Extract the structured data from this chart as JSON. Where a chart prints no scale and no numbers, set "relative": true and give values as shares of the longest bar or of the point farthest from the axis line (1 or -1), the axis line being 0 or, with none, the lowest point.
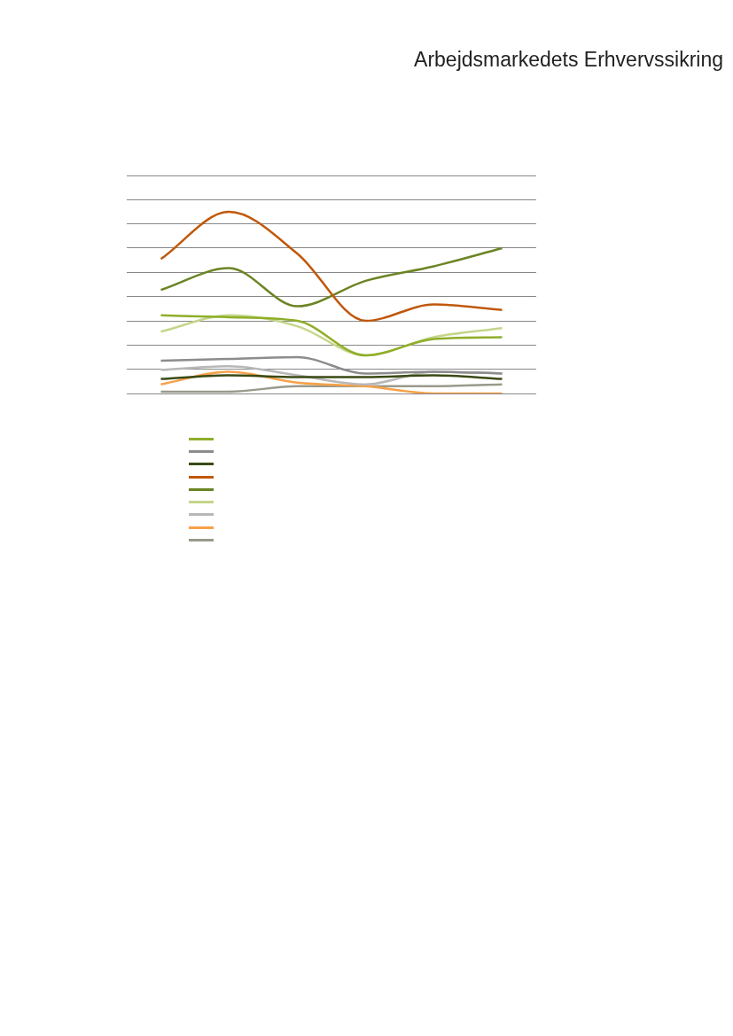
{
  "chart_data": {
    "type": "line",
    "title": "Arbejdsmarkedets Erhvervssikring",
    "relative": true,
    "grid": "y",
    "categories": [
      null,
      null,
      null,
      null,
      null,
      null
    ],
    "series": [
      {
        "color": "#8fae2a",
        "values": [
          0.43,
          0.42,
          0.4,
          0.21,
          0.3,
          0.31
        ]
      },
      {
        "color": "#8c8c8c",
        "values": [
          0.18,
          0.19,
          0.2,
          0.11,
          0.12,
          0.11
        ]
      },
      {
        "color": "#3a4a14",
        "values": [
          0.08,
          0.1,
          0.09,
          0.09,
          0.1,
          0.08
        ]
      },
      {
        "color": "#c0580b",
        "values": [
          0.74,
          1.0,
          0.77,
          0.4,
          0.49,
          0.46
        ]
      },
      {
        "color": "#6b8423",
        "values": [
          0.57,
          0.69,
          0.48,
          0.62,
          0.7,
          0.8
        ]
      },
      {
        "color": "#c5d68a",
        "values": [
          0.34,
          0.43,
          0.37,
          0.21,
          0.31,
          0.36
        ]
      },
      {
        "color": "#b8b8b8",
        "values": [
          0.13,
          0.15,
          0.1,
          0.05,
          0.12,
          0.11
        ]
      },
      {
        "color": "#f7a14a",
        "values": [
          0.05,
          0.12,
          0.06,
          0.04,
          0,
          0
        ]
      },
      {
        "color": "#999a8a",
        "values": [
          0.01,
          0.01,
          0.04,
          0.04,
          0.04,
          0.05
        ]
      }
    ]
  }
}
